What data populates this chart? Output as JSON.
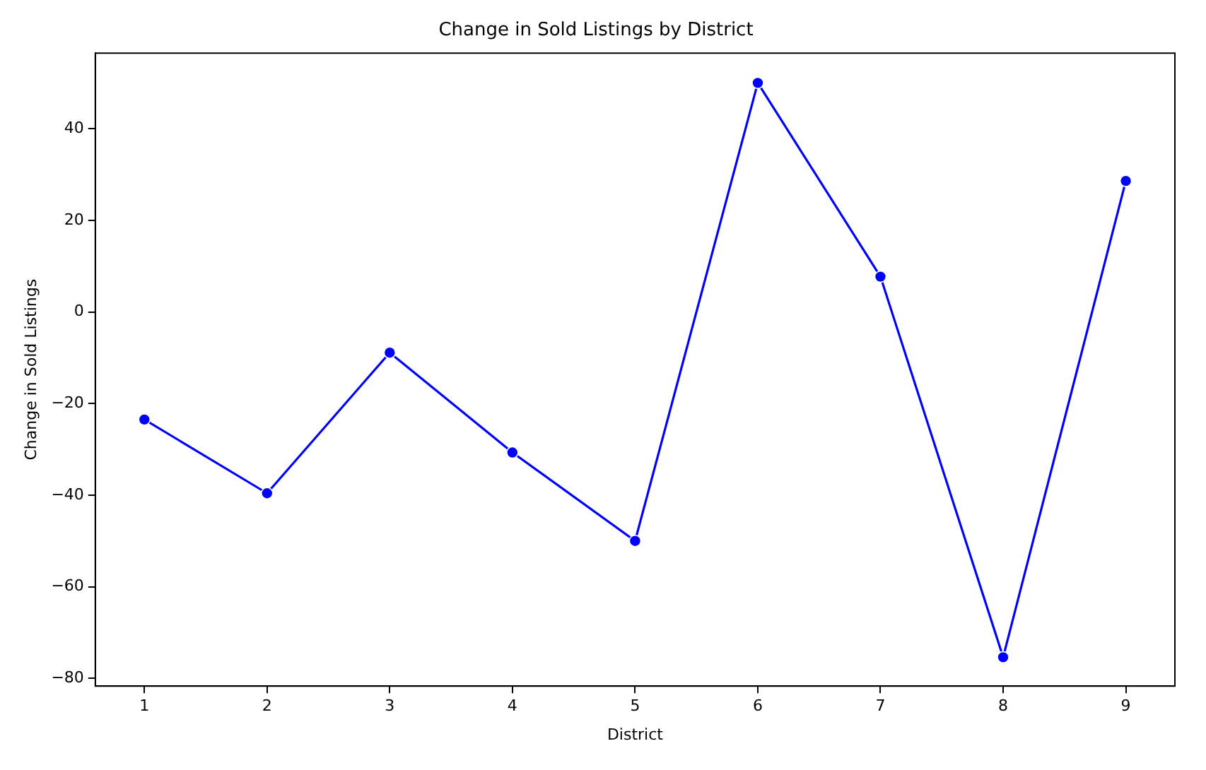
{
  "chart_data": {
    "type": "line",
    "title": "Change in Sold Listings by District",
    "xlabel": "District",
    "ylabel": "Change in Sold Listings",
    "x": [
      1,
      2,
      3,
      4,
      5,
      6,
      7,
      8,
      9
    ],
    "series": [
      {
        "color": "#0000ff",
        "values": [
          -23.5,
          -39.6,
          -8.9,
          -30.7,
          -50.0,
          50.0,
          7.7,
          -75.4,
          28.6
        ]
      }
    ],
    "xlim": [
      0.6,
      9.4
    ],
    "xticks": [
      1,
      2,
      3,
      4,
      5,
      6,
      7,
      8,
      9
    ],
    "ylim": [
      -81.7,
      56.5
    ],
    "yticks": [
      -80,
      -60,
      -40,
      -20,
      0,
      20,
      40
    ],
    "marker": "circle",
    "line_style": "solid",
    "grid": false,
    "legend": false
  }
}
